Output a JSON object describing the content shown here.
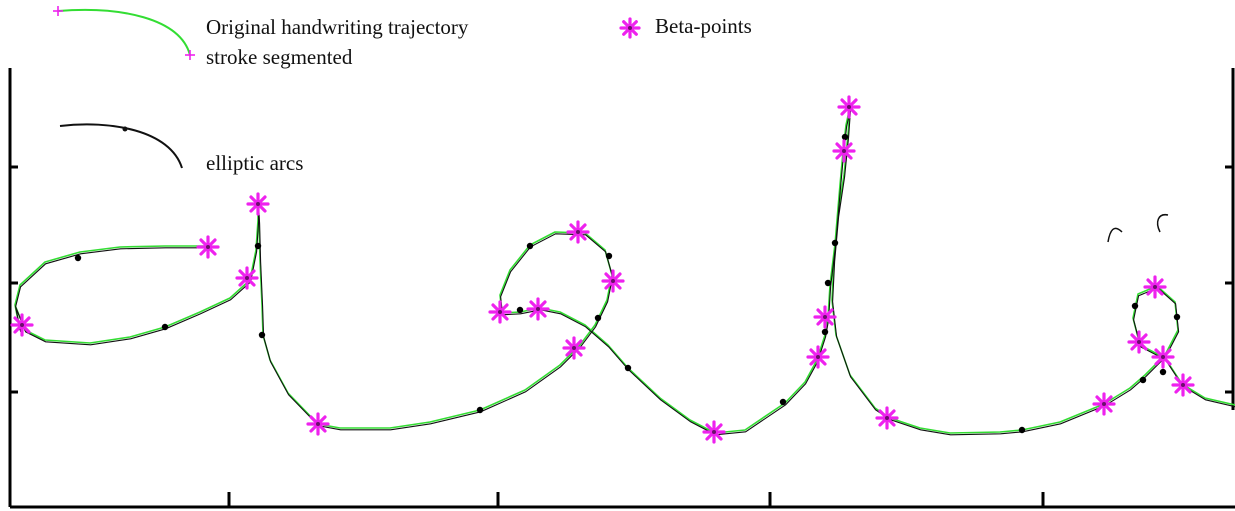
{
  "chart_data": {
    "type": "line",
    "title": "",
    "xlabel": "",
    "ylabel": "",
    "grid": false,
    "legend_position": "top-left",
    "legend": {
      "trajectory": "Original handwriting trajectory",
      "segmented": "stroke segmented",
      "beta": "Beta-points",
      "arcs": "elliptic arcs"
    },
    "colors": {
      "trajectory": "#33dd33",
      "beta": "#ee22ee",
      "arcs": "#111111",
      "axis": "#000000"
    },
    "series": [
      {
        "name": "Original handwriting trajectory",
        "points": [
          [
            20,
            330
          ],
          [
            15,
            305
          ],
          [
            20,
            285
          ],
          [
            45,
            262
          ],
          [
            80,
            252
          ],
          [
            120,
            247
          ],
          [
            165,
            246
          ],
          [
            208,
            246
          ],
          [
            208,
            246
          ],
          [
            195,
            246
          ],
          [
            165,
            246
          ],
          [
            120,
            247
          ],
          [
            80,
            252
          ],
          [
            45,
            262
          ],
          [
            20,
            285
          ],
          [
            15,
            305
          ],
          [
            25,
            330
          ],
          [
            45,
            340
          ],
          [
            90,
            343
          ],
          [
            130,
            337
          ],
          [
            165,
            327
          ],
          [
            200,
            312
          ],
          [
            230,
            298
          ],
          [
            250,
            280
          ],
          [
            256,
            250
          ],
          [
            258,
            220
          ],
          [
            258,
            204
          ],
          [
            259,
            222
          ],
          [
            260,
            260
          ],
          [
            262,
            305
          ],
          [
            263,
            335
          ],
          [
            270,
            360
          ],
          [
            288,
            393
          ],
          [
            318,
            424
          ],
          [
            340,
            428
          ],
          [
            390,
            428
          ],
          [
            430,
            422
          ],
          [
            480,
            410
          ],
          [
            525,
            390
          ],
          [
            560,
            365
          ],
          [
            580,
            345
          ],
          [
            595,
            325
          ],
          [
            607,
            300
          ],
          [
            612,
            275
          ],
          [
            605,
            250
          ],
          [
            585,
            233
          ],
          [
            555,
            232
          ],
          [
            530,
            245
          ],
          [
            510,
            270
          ],
          [
            500,
            295
          ],
          [
            502,
            313
          ],
          [
            520,
            312
          ],
          [
            540,
            308
          ],
          [
            560,
            312
          ],
          [
            585,
            325
          ],
          [
            608,
            345
          ],
          [
            628,
            368
          ],
          [
            660,
            398
          ],
          [
            690,
            420
          ],
          [
            715,
            433
          ],
          [
            745,
            430
          ],
          [
            785,
            403
          ],
          [
            805,
            382
          ],
          [
            817,
            360
          ],
          [
            825,
            335
          ],
          [
            828,
            318
          ],
          [
            830,
            285
          ],
          [
            835,
            244
          ],
          [
            840,
            185
          ],
          [
            843,
            152
          ],
          [
            846,
            125
          ],
          [
            850,
            107
          ],
          [
            848,
            135
          ],
          [
            844,
            175
          ],
          [
            838,
            215
          ],
          [
            834,
            260
          ],
          [
            832,
            300
          ],
          [
            836,
            335
          ],
          [
            850,
            375
          ],
          [
            875,
            408
          ],
          [
            890,
            418
          ],
          [
            920,
            428
          ],
          [
            950,
            433
          ],
          [
            1000,
            432
          ],
          [
            1022,
            430
          ],
          [
            1060,
            422
          ],
          [
            1104,
            404
          ],
          [
            1130,
            388
          ],
          [
            1145,
            375
          ],
          [
            1165,
            355
          ],
          [
            1178,
            330
          ],
          [
            1175,
            302
          ],
          [
            1157,
            286
          ],
          [
            1138,
            294
          ],
          [
            1133,
            318
          ],
          [
            1140,
            345
          ],
          [
            1165,
            358
          ],
          [
            1182,
            384
          ],
          [
            1205,
            398
          ],
          [
            1235,
            405
          ]
        ]
      },
      {
        "name": "Beta-points",
        "points": [
          [
            22,
            325
          ],
          [
            208,
            247
          ],
          [
            258,
            204
          ],
          [
            247,
            278
          ],
          [
            318,
            424
          ],
          [
            500,
            312
          ],
          [
            538,
            309
          ],
          [
            578,
            232
          ],
          [
            613,
            281
          ],
          [
            574,
            348
          ],
          [
            714,
            432
          ],
          [
            849,
            107
          ],
          [
            844,
            151
          ],
          [
            825,
            317
          ],
          [
            818,
            357
          ],
          [
            887,
            418
          ],
          [
            1104,
            404
          ],
          [
            1155,
            287
          ],
          [
            1139,
            342
          ],
          [
            1163,
            357
          ],
          [
            1183,
            385
          ]
        ]
      },
      {
        "name": "segment points",
        "points": [
          [
            78,
            258
          ],
          [
            165,
            327
          ],
          [
            258,
            246
          ],
          [
            262,
            335
          ],
          [
            480,
            410
          ],
          [
            520,
            310
          ],
          [
            530,
            246
          ],
          [
            609,
            256
          ],
          [
            598,
            318
          ],
          [
            628,
            368
          ],
          [
            783,
            402
          ],
          [
            845,
            137
          ],
          [
            835,
            243
          ],
          [
            828,
            283
          ],
          [
            825,
            332
          ],
          [
            1022,
            430
          ],
          [
            1135,
            306
          ],
          [
            1177,
            317
          ],
          [
            1163,
            372
          ],
          [
            1143,
            380
          ]
        ]
      }
    ]
  }
}
